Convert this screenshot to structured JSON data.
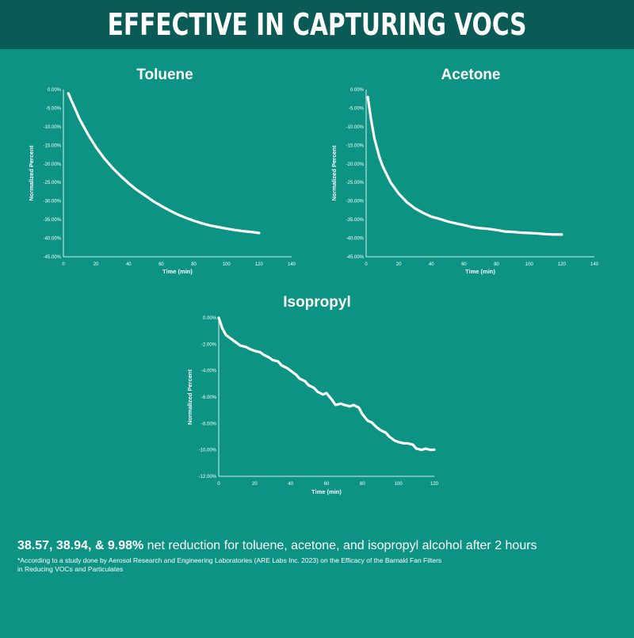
{
  "banner": {
    "title": "EFFECTIVE IN CAPTURING VOCS"
  },
  "chart_data": [
    {
      "type": "line",
      "title": "Toluene",
      "xlabel": "Time (min)",
      "ylabel": "Normalized Percent",
      "xlim": [
        0,
        140
      ],
      "ylim": [
        -45,
        0
      ],
      "x_ticks": [
        "0",
        "20",
        "40",
        "60",
        "80",
        "100",
        "120",
        "140"
      ],
      "y_ticks": [
        "0.00%",
        "-5.00%",
        "-10.00%",
        "-15.00%",
        "-20.00%",
        "-25.00%",
        "-30.00%",
        "-35.00%",
        "-40.00%",
        "-45.00%"
      ],
      "grid": false,
      "series": [
        {
          "x": [
            3,
            5,
            10,
            15,
            20,
            25,
            30,
            35,
            40,
            45,
            50,
            55,
            60,
            65,
            70,
            75,
            80,
            85,
            90,
            95,
            100,
            105,
            110,
            115,
            120
          ],
          "y": [
            -1.0,
            -3.0,
            -8.0,
            -12.0,
            -15.5,
            -18.5,
            -21.0,
            -23.2,
            -25.2,
            -27.0,
            -28.5,
            -30.0,
            -31.3,
            -32.5,
            -33.6,
            -34.5,
            -35.3,
            -36.0,
            -36.6,
            -37.0,
            -37.4,
            -37.8,
            -38.1,
            -38.3,
            -38.6
          ]
        }
      ]
    },
    {
      "type": "line",
      "title": "Acetone",
      "xlabel": "Time (min)",
      "ylabel": "Normalized Percent",
      "xlim": [
        0,
        140
      ],
      "ylim": [
        -45,
        0
      ],
      "x_ticks": [
        "0",
        "20",
        "40",
        "60",
        "80",
        "100",
        "120",
        "140"
      ],
      "y_ticks": [
        "0.00%",
        "-5.00%",
        "-10.00%",
        "-15.00%",
        "-20.00%",
        "-25.00%",
        "-30.00%",
        "-35.00%",
        "-40.00%",
        "-45.00%"
      ],
      "grid": false,
      "series": [
        {
          "x": [
            1,
            3,
            5,
            8,
            10,
            15,
            20,
            25,
            30,
            35,
            40,
            45,
            50,
            55,
            60,
            65,
            70,
            75,
            80,
            85,
            90,
            95,
            100,
            105,
            110,
            115,
            120
          ],
          "y": [
            -2.0,
            -8.0,
            -13.0,
            -18.0,
            -20.5,
            -25.0,
            -28.0,
            -30.3,
            -32.0,
            -33.2,
            -34.2,
            -34.8,
            -35.5,
            -36.0,
            -36.5,
            -37.0,
            -37.3,
            -37.5,
            -37.8,
            -38.2,
            -38.3,
            -38.5,
            -38.6,
            -38.7,
            -38.9,
            -39.0,
            -39.0
          ]
        }
      ]
    },
    {
      "type": "line",
      "title": "Isopropyl",
      "xlabel": "Time (min)",
      "ylabel": "Normalized Percent",
      "xlim": [
        0,
        120
      ],
      "ylim": [
        -12,
        0
      ],
      "x_ticks": [
        "0",
        "20",
        "40",
        "60",
        "80",
        "100",
        "120"
      ],
      "y_ticks": [
        "0.00%",
        "-2.00%",
        "-4.00%",
        "-6.00%",
        "-8.00%",
        "-10.00%",
        "-12.00%"
      ],
      "grid": false,
      "series": [
        {
          "x": [
            0,
            2,
            4,
            6,
            8,
            10,
            12,
            15,
            18,
            20,
            23,
            25,
            28,
            30,
            33,
            35,
            38,
            40,
            43,
            45,
            48,
            50,
            53,
            55,
            58,
            60,
            63,
            65,
            68,
            70,
            73,
            75,
            78,
            80,
            83,
            85,
            88,
            90,
            93,
            95,
            98,
            100,
            103,
            105,
            108,
            110,
            113,
            115,
            118,
            120
          ],
          "y": [
            0.0,
            -0.8,
            -1.3,
            -1.5,
            -1.7,
            -1.9,
            -2.1,
            -2.2,
            -2.4,
            -2.5,
            -2.6,
            -2.8,
            -3.0,
            -3.2,
            -3.3,
            -3.6,
            -3.8,
            -4.0,
            -4.3,
            -4.6,
            -4.8,
            -5.1,
            -5.3,
            -5.6,
            -5.8,
            -5.7,
            -6.2,
            -6.6,
            -6.5,
            -6.6,
            -6.7,
            -6.6,
            -6.8,
            -7.3,
            -7.8,
            -7.9,
            -8.3,
            -8.5,
            -8.7,
            -9.0,
            -9.3,
            -9.4,
            -9.5,
            -9.5,
            -9.6,
            -9.9,
            -10.0,
            -9.9,
            -10.0,
            -9.98
          ]
        }
      ]
    }
  ],
  "footer": {
    "headline_bold": "38.57, 38.94, & 9.98%",
    "headline_rest": " net reduction for toluene, acetone, and isopropyl alcohol after 2 hours",
    "footnote_line1": "*According to a study done by Aerosol Research and Engineering Laboratories (ARE Labs Inc. 2023) on the Efficacy of the Barnakl Fan Filters",
    "footnote_line2": "in Reducing VOCs and Particulates"
  }
}
